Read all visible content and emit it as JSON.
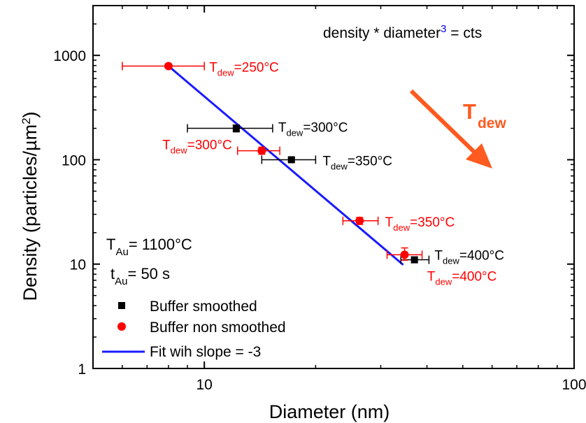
{
  "chart_data": {
    "type": "scatter",
    "x_scale": "log",
    "y_scale": "log",
    "xlim": [
      5,
      100
    ],
    "ylim": [
      1,
      3000
    ],
    "xlabel": "Diameter (nm)",
    "ylabel_main": "Density (particles/µm",
    "ylabel_sup": "2",
    "ylabel_close": ")",
    "x_ticks": [
      {
        "value": 10,
        "label": "10"
      },
      {
        "value": 100,
        "label": "100"
      }
    ],
    "y_ticks": [
      {
        "value": 1,
        "label": "1"
      },
      {
        "value": 10,
        "label": "10"
      },
      {
        "value": 100,
        "label": "100"
      },
      {
        "value": 1000,
        "label": "1000"
      }
    ],
    "grid": false,
    "colors": {
      "smoothed": "#000000",
      "non_smoothed": "#ff0000",
      "fit": "#1a1aff",
      "arrow": "#ff5a1f",
      "equation_sup": "#0000ff"
    },
    "series": [
      {
        "name": "Buffer smoothed",
        "marker": "square",
        "color": "#000000",
        "points": [
          {
            "x": 12.2,
            "y": 200,
            "xerr": [
              9.0,
              15.3
            ],
            "yerr": [
              185,
              215
            ],
            "label": {
              "main": "T",
              "sub": "dew",
              "rest": "=300°C"
            }
          },
          {
            "x": 17.2,
            "y": 100,
            "xerr": [
              14.3,
              20.0
            ],
            "yerr": [
              96,
              104
            ],
            "label": {
              "main": "T",
              "sub": "dew",
              "rest": "=350°C"
            }
          },
          {
            "x": 37.0,
            "y": 11,
            "xerr": [
              34.0,
              40.5
            ],
            "yerr": [
              10.3,
              11.7
            ],
            "label": {
              "main": "T",
              "sub": "dew",
              "rest": "=400°C"
            }
          }
        ]
      },
      {
        "name": "Buffer non smoothed",
        "marker": "circle",
        "color": "#ff0000",
        "points": [
          {
            "x": 8.0,
            "y": 790,
            "xerr": [
              6.0,
              10.0
            ],
            "yerr": [
              770,
              810
            ],
            "label": {
              "main": "T",
              "sub": "dew",
              "rest": "=250°C"
            }
          },
          {
            "x": 14.3,
            "y": 122,
            "xerr": [
              12.3,
              16.0
            ],
            "yerr": [
              113,
              132
            ],
            "label": {
              "main": "T",
              "sub": "dew",
              "rest": "=300°C"
            }
          },
          {
            "x": 26.3,
            "y": 26,
            "xerr": [
              23.7,
              29.5
            ],
            "yerr": [
              24,
              28
            ],
            "label": {
              "main": "T",
              "sub": "dew",
              "rest": "=350°C"
            }
          },
          {
            "x": 34.8,
            "y": 12.3,
            "xerr": [
              31.2,
              38.8
            ],
            "yerr": [
              10.9,
              14.3
            ],
            "label": {
              "main": "T",
              "sub": "dew",
              "rest": "=400°C"
            }
          }
        ]
      }
    ],
    "fit": {
      "name": "Fit wih slope = -3",
      "slope": -3,
      "x_start": 8.0,
      "y_start": 790,
      "x_end": 34.5
    },
    "annotations": {
      "equation_pre": "density * diameter",
      "equation_sup": "3",
      "equation_post": " = cts",
      "arrow_label_main": "T",
      "arrow_label_sub": "dew",
      "t_au_main": "T",
      "t_au_sub": "Au",
      "t_au_rest": "= 1100°C",
      "time_main": "t",
      "time_sub": "Au",
      "time_rest": "= 50 s"
    },
    "legend": {
      "placement": "bottom-left",
      "entries": [
        {
          "label": "Buffer smoothed",
          "marker": "square",
          "color": "#000000"
        },
        {
          "label": "Buffer non smoothed",
          "marker": "circle",
          "color": "#ff0000"
        },
        {
          "label": "Fit wih slope = -3",
          "marker": "line",
          "color": "#1a1aff"
        }
      ]
    }
  }
}
